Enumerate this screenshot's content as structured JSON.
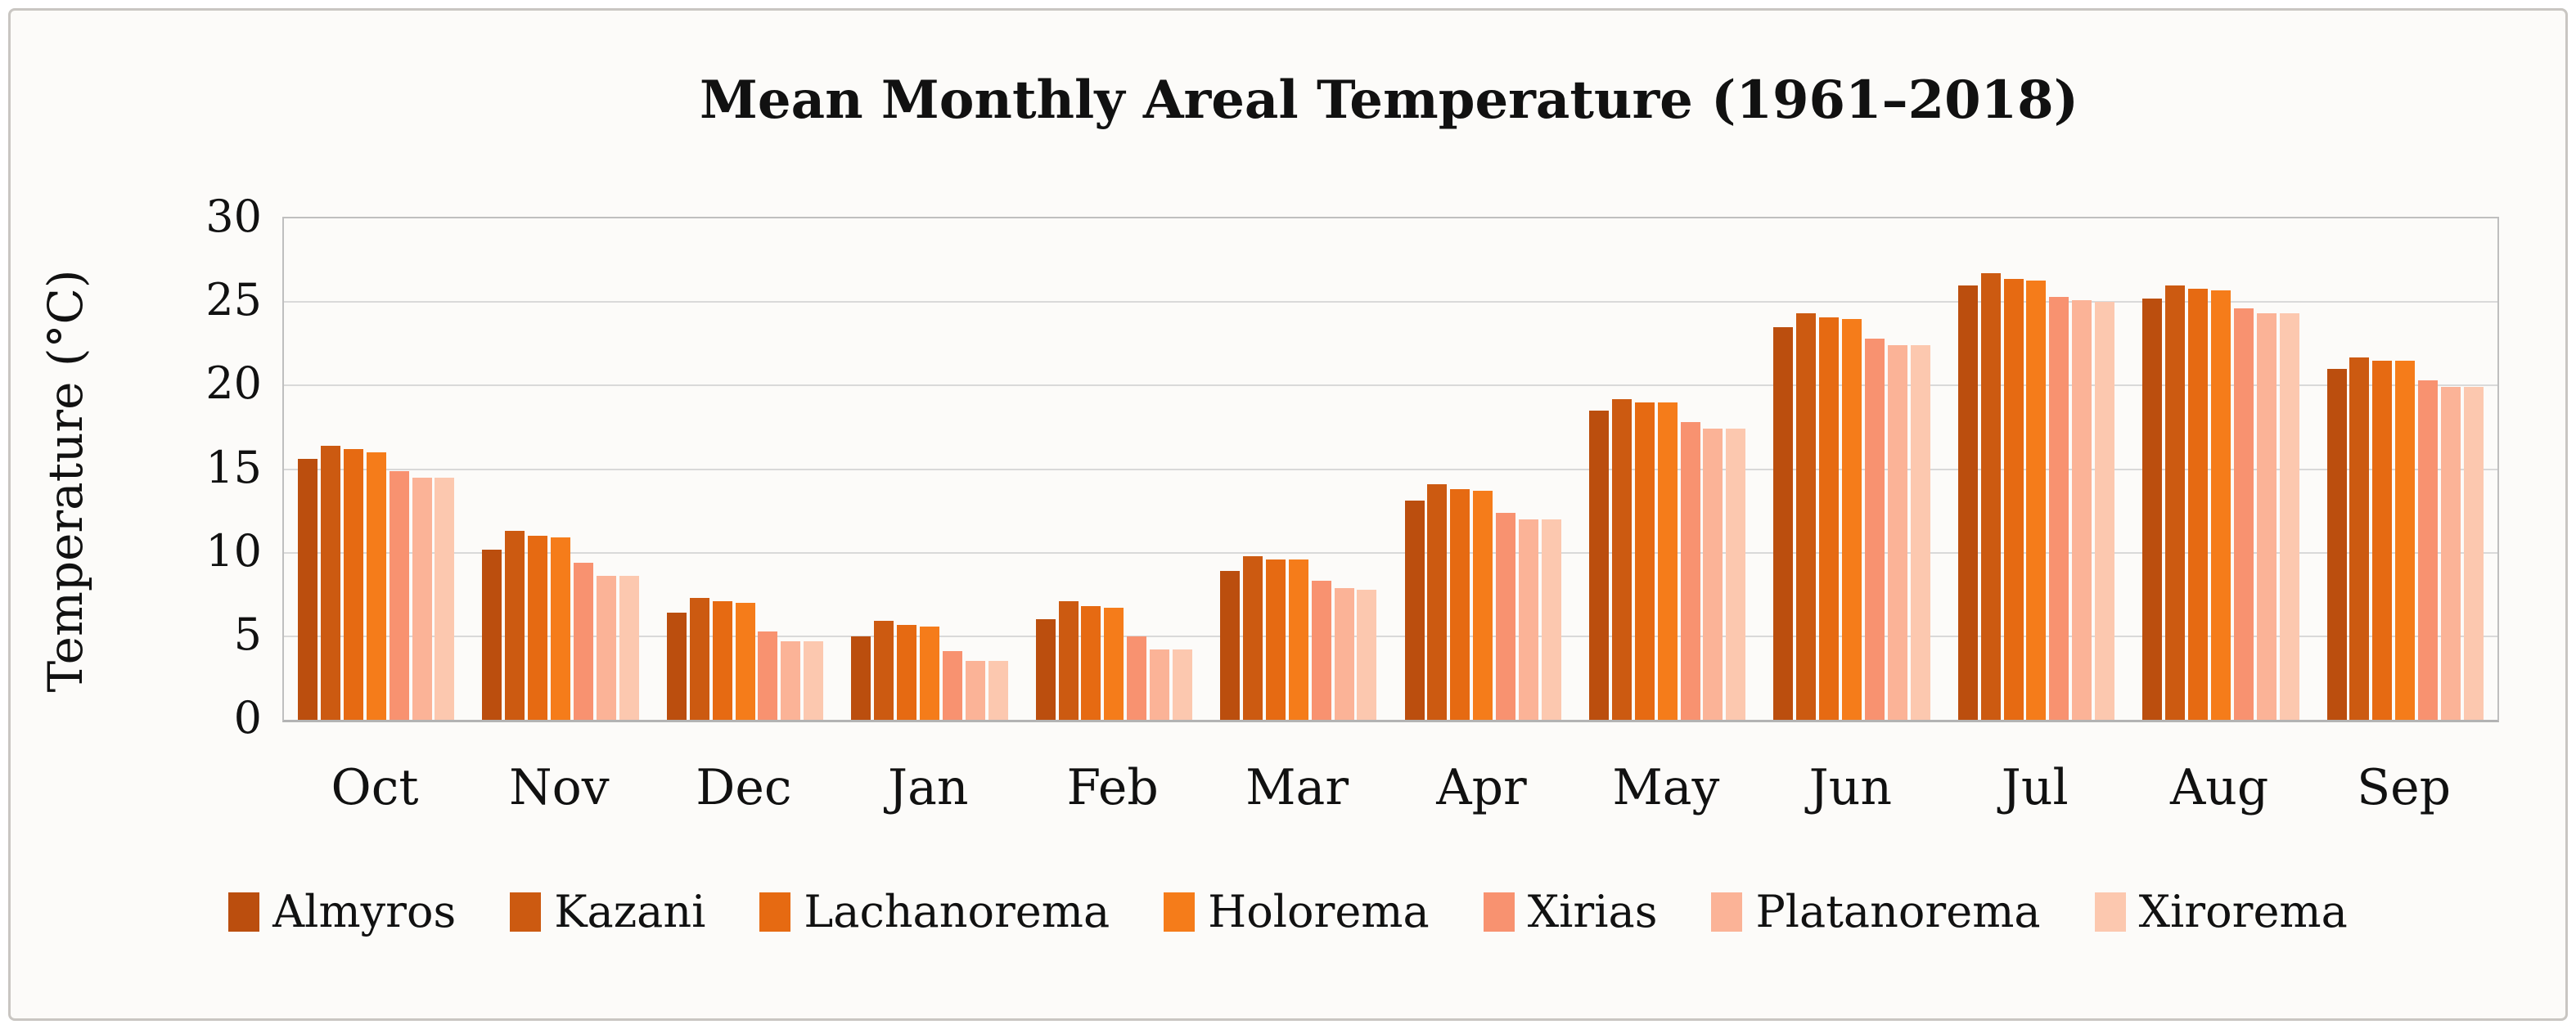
{
  "figure": {
    "background": "#fcfbf9",
    "frame_border_color": "#c9c6c2"
  },
  "chart_data": {
    "type": "bar",
    "title": "Mean Monthly Areal Temperature (1961–2018)",
    "xlabel": "",
    "ylabel": "Temperature (°C)",
    "ylim": [
      0,
      30
    ],
    "yticks": [
      0,
      5,
      10,
      15,
      20,
      25,
      30
    ],
    "grid": true,
    "gridline_color": "#d9d9d9",
    "axis_line_color": "#bfbfbf",
    "legend_position": "bottom",
    "categories": [
      "Oct",
      "Nov",
      "Dec",
      "Jan",
      "Feb",
      "Mar",
      "Apr",
      "May",
      "Jun",
      "Jul",
      "Aug",
      "Sep"
    ],
    "series": [
      {
        "name": "Almyros",
        "color": "#bb4e0e",
        "values": [
          15.6,
          10.2,
          6.4,
          5.0,
          6.0,
          8.9,
          13.1,
          18.5,
          23.5,
          26.0,
          25.2,
          21.0
        ]
      },
      {
        "name": "Kazani",
        "color": "#cc5a11",
        "values": [
          16.4,
          11.3,
          7.3,
          5.9,
          7.1,
          9.8,
          14.1,
          19.2,
          24.3,
          26.7,
          26.0,
          21.7
        ]
      },
      {
        "name": "Lachanorema",
        "color": "#e66a12",
        "values": [
          16.2,
          11.0,
          7.1,
          5.7,
          6.8,
          9.6,
          13.8,
          19.0,
          24.1,
          26.4,
          25.8,
          21.5
        ]
      },
      {
        "name": "Holorema",
        "color": "#f57c1a",
        "values": [
          16.0,
          10.9,
          7.0,
          5.6,
          6.7,
          9.6,
          13.7,
          19.0,
          24.0,
          26.3,
          25.7,
          21.5
        ]
      },
      {
        "name": "Xirias",
        "color": "#f89270",
        "values": [
          14.9,
          9.4,
          5.3,
          4.1,
          5.0,
          8.3,
          12.4,
          17.8,
          22.8,
          25.3,
          24.6,
          20.3
        ]
      },
      {
        "name": "Platanorema",
        "color": "#fbb397",
        "values": [
          14.5,
          8.6,
          4.7,
          3.5,
          4.2,
          7.9,
          12.0,
          17.4,
          22.4,
          25.1,
          24.3,
          19.9
        ]
      },
      {
        "name": "Xirorema",
        "color": "#fcc8af",
        "values": [
          14.5,
          8.6,
          4.7,
          3.5,
          4.2,
          7.8,
          12.0,
          17.4,
          22.4,
          25.0,
          24.3,
          19.9
        ]
      }
    ]
  }
}
